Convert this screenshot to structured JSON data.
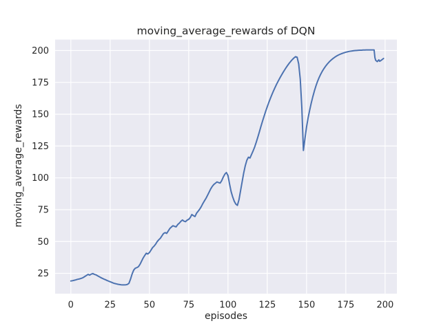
{
  "figure": {
    "background_color": "#ffffff",
    "axes_background_color": "#eaeaf2",
    "grid_color": "#ffffff",
    "text_color": "#262626"
  },
  "chart_data": {
    "type": "line",
    "title": "moving_average_rewards of DQN",
    "xlabel": "episodes",
    "ylabel": "moving_average_rewards",
    "x_ticks": [
      0,
      25,
      50,
      75,
      100,
      125,
      150,
      175,
      200
    ],
    "y_ticks": [
      25,
      50,
      75,
      100,
      125,
      150,
      175,
      200
    ],
    "xlim": [
      -10,
      207.5
    ],
    "ylim": [
      9,
      208.6
    ],
    "grid": true,
    "legend": null,
    "series": [
      {
        "name": "moving_average_rewards",
        "color": "#4c72b0",
        "points": [
          [
            0,
            19
          ],
          [
            1,
            19.2
          ],
          [
            2,
            19.5
          ],
          [
            3,
            19.8
          ],
          [
            4,
            20.2
          ],
          [
            5,
            20.5
          ],
          [
            6,
            20.8
          ],
          [
            7,
            21.2
          ],
          [
            8,
            21.8
          ],
          [
            9,
            22.6
          ],
          [
            10,
            23.4
          ],
          [
            11,
            24.2
          ],
          [
            12,
            23.6
          ],
          [
            13,
            24.4
          ],
          [
            14,
            24.8
          ],
          [
            15,
            24.2
          ],
          [
            16,
            23.8
          ],
          [
            17,
            23.1
          ],
          [
            18,
            22.4
          ],
          [
            19,
            21.7
          ],
          [
            20,
            21.1
          ],
          [
            21,
            20.5
          ],
          [
            22,
            20
          ],
          [
            23,
            19.4
          ],
          [
            24,
            18.9
          ],
          [
            25,
            18.4
          ],
          [
            26,
            17.9
          ],
          [
            27,
            17.4
          ],
          [
            28,
            17
          ],
          [
            29,
            16.7
          ],
          [
            30,
            16.4
          ],
          [
            31,
            16.2
          ],
          [
            32,
            16
          ],
          [
            33,
            15.9
          ],
          [
            34,
            15.9
          ],
          [
            35,
            16
          ],
          [
            36,
            16.3
          ],
          [
            37,
            17.2
          ],
          [
            38,
            20.5
          ],
          [
            39,
            24.5
          ],
          [
            40,
            27.5
          ],
          [
            41,
            29
          ],
          [
            42,
            29.5
          ],
          [
            43,
            30.2
          ],
          [
            44,
            32
          ],
          [
            45,
            34.5
          ],
          [
            46,
            37
          ],
          [
            47,
            39
          ],
          [
            48,
            40.8
          ],
          [
            49,
            40.2
          ],
          [
            50,
            41.3
          ],
          [
            51,
            43.2
          ],
          [
            52,
            45.2
          ],
          [
            53,
            46.4
          ],
          [
            54,
            48
          ],
          [
            55,
            50
          ],
          [
            56,
            51.4
          ],
          [
            57,
            52.6
          ],
          [
            58,
            54.5
          ],
          [
            59,
            56.3
          ],
          [
            60,
            57
          ],
          [
            61,
            56.4
          ],
          [
            62,
            58.3
          ],
          [
            63,
            60.2
          ],
          [
            64,
            61.4
          ],
          [
            65,
            62.4
          ],
          [
            66,
            61.9
          ],
          [
            67,
            61.5
          ],
          [
            68,
            63.3
          ],
          [
            69,
            64.4
          ],
          [
            70,
            65.8
          ],
          [
            71,
            66.9
          ],
          [
            72,
            66
          ],
          [
            73,
            65.6
          ],
          [
            74,
            66.8
          ],
          [
            75,
            67.4
          ],
          [
            76,
            68.8
          ],
          [
            77,
            71.2
          ],
          [
            78,
            70.3
          ],
          [
            79,
            69.6
          ],
          [
            80,
            72.2
          ],
          [
            81,
            73.8
          ],
          [
            82,
            75.4
          ],
          [
            83,
            77.4
          ],
          [
            84,
            79.8
          ],
          [
            85,
            81.9
          ],
          [
            86,
            83.9
          ],
          [
            87,
            86.3
          ],
          [
            88,
            88.8
          ],
          [
            89,
            91.3
          ],
          [
            90,
            93.3
          ],
          [
            91,
            94.8
          ],
          [
            92,
            95.8
          ],
          [
            93,
            96.8
          ],
          [
            94,
            96.3
          ],
          [
            95,
            95.9
          ],
          [
            96,
            97.8
          ],
          [
            97,
            100.6
          ],
          [
            98,
            102.9
          ],
          [
            99,
            104.2
          ],
          [
            100,
            101.8
          ],
          [
            101,
            95.2
          ],
          [
            102,
            89.2
          ],
          [
            103,
            85
          ],
          [
            104,
            81.6
          ],
          [
            105,
            79.4
          ],
          [
            106,
            78.4
          ],
          [
            107,
            82.8
          ],
          [
            108,
            89.8
          ],
          [
            109,
            96.8
          ],
          [
            110,
            103.8
          ],
          [
            111,
            109.5
          ],
          [
            112,
            113.8
          ],
          [
            113,
            116.2
          ],
          [
            114,
            115.6
          ],
          [
            115,
            118.4
          ],
          [
            116,
            121.2
          ],
          [
            117,
            124.3
          ],
          [
            118,
            128
          ],
          [
            119,
            132
          ],
          [
            120,
            136.2
          ],
          [
            121,
            140.5
          ],
          [
            122,
            144.6
          ],
          [
            123,
            148.5
          ],
          [
            124,
            152.3
          ],
          [
            125,
            155.9
          ],
          [
            126,
            159.3
          ],
          [
            127,
            162.5
          ],
          [
            128,
            165.5
          ],
          [
            129,
            168.4
          ],
          [
            130,
            171.1
          ],
          [
            131,
            173.7
          ],
          [
            132,
            176.1
          ],
          [
            133,
            178.4
          ],
          [
            134,
            180.6
          ],
          [
            135,
            182.7
          ],
          [
            136,
            184.7
          ],
          [
            137,
            186.6
          ],
          [
            138,
            188.4
          ],
          [
            139,
            190.1
          ],
          [
            140,
            191.6
          ],
          [
            141,
            193
          ],
          [
            142,
            194.2
          ],
          [
            143,
            195.2
          ],
          [
            144,
            194.8
          ],
          [
            145,
            189.5
          ],
          [
            146,
            177.5
          ],
          [
            147,
            155
          ],
          [
            148,
            121.5
          ],
          [
            149,
            131
          ],
          [
            150,
            140
          ],
          [
            151,
            147.2
          ],
          [
            152,
            153.2
          ],
          [
            153,
            158.8
          ],
          [
            154,
            163.8
          ],
          [
            155,
            168.3
          ],
          [
            156,
            172.3
          ],
          [
            157,
            175.8
          ],
          [
            158,
            178.8
          ],
          [
            159,
            181.4
          ],
          [
            160,
            183.7
          ],
          [
            161,
            185.7
          ],
          [
            162,
            187.5
          ],
          [
            163,
            189.1
          ],
          [
            164,
            190.5
          ],
          [
            165,
            191.8
          ],
          [
            166,
            192.9
          ],
          [
            167,
            193.9
          ],
          [
            168,
            194.8
          ],
          [
            169,
            195.6
          ],
          [
            170,
            196.3
          ],
          [
            171,
            196.9
          ],
          [
            172,
            197.4
          ],
          [
            173,
            197.9
          ],
          [
            174,
            198.3
          ],
          [
            175,
            198.7
          ],
          [
            176,
            199
          ],
          [
            177,
            199.3
          ],
          [
            178,
            199.5
          ],
          [
            179,
            199.7
          ],
          [
            180,
            199.9
          ],
          [
            181,
            200
          ],
          [
            182,
            200.1
          ],
          [
            183,
            200.2
          ],
          [
            184,
            200.3
          ],
          [
            185,
            200.3
          ],
          [
            186,
            200.4
          ],
          [
            187,
            200.4
          ],
          [
            188,
            200.5
          ],
          [
            189,
            200.5
          ],
          [
            190,
            200.5
          ],
          [
            191,
            200.5
          ],
          [
            192,
            200.5
          ],
          [
            193,
            200.5
          ],
          [
            193.5,
            194.5
          ],
          [
            194,
            192.3
          ],
          [
            195,
            191.3
          ],
          [
            196,
            192.7
          ],
          [
            196.5,
            191.6
          ],
          [
            197,
            191.9
          ],
          [
            198,
            192.8
          ],
          [
            199,
            193.8
          ]
        ]
      }
    ]
  }
}
